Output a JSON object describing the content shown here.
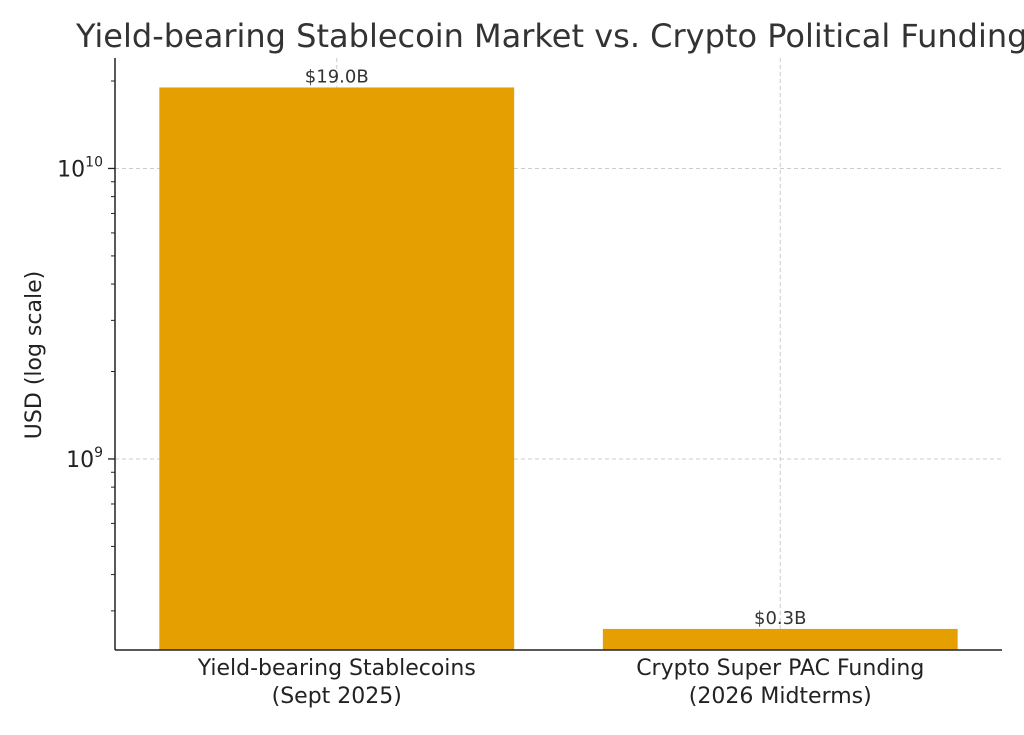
{
  "chart_data": {
    "type": "bar",
    "title": "Yield-bearing Stablecoin Market vs. Crypto Political Funding",
    "xlabel": "",
    "ylabel": "USD (log scale)",
    "y_scale": "log",
    "ylim": [
      220000000,
      24000000000
    ],
    "grid": true,
    "categories": [
      [
        "Yield-bearing Stablecoins",
        "(Sept 2025)"
      ],
      [
        "Crypto Super PAC Funding",
        "(2026 Midterms)"
      ]
    ],
    "values": [
      19000000000,
      260000000
    ],
    "data_labels": [
      "$19.0B",
      "$0.3B"
    ],
    "y_major_ticks": [
      {
        "value": 1000000000,
        "base": "10",
        "exp": "9"
      },
      {
        "value": 10000000000,
        "base": "10",
        "exp": "10"
      }
    ],
    "colors": {
      "bar": "#E69F00",
      "text": "#333333",
      "axis": "#222222",
      "grid": "#cccccc"
    }
  }
}
